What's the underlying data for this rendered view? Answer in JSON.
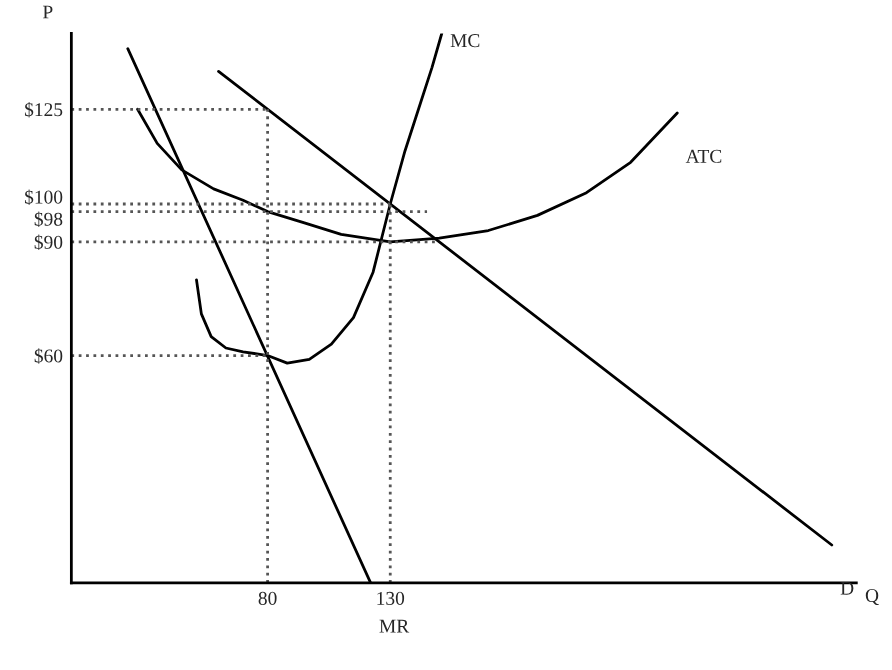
{
  "chart_data": {
    "type": "line",
    "xlabel": "Q",
    "ylabel": "P",
    "xlim": [
      0,
      320
    ],
    "ylim": [
      0,
      145
    ],
    "xticks": [
      80,
      130
    ],
    "yticks": [
      {
        "value": 60,
        "label": "$60"
      },
      {
        "value": 90,
        "label": "$90"
      },
      {
        "value": 98,
        "label": "$98"
      },
      {
        "value": 100,
        "label": "$100"
      },
      {
        "value": 125,
        "label": "$125"
      }
    ],
    "grid": false,
    "legend": false,
    "marker": "none",
    "series": [
      {
        "name": "D",
        "color": "#000000",
        "line_style": "solid",
        "x": [
          60,
          310
        ],
        "values": [
          135,
          10
        ]
      },
      {
        "name": "MR",
        "color": "#000000",
        "line_style": "solid",
        "x": [
          23,
          122
        ],
        "values": [
          141,
          0
        ]
      },
      {
        "name": "MC",
        "color": "#000000",
        "line_style": "solid",
        "x": [
          51,
          53,
          57,
          63,
          70,
          80,
          88,
          97,
          106,
          115,
          123,
          130,
          136,
          142,
          147,
          151
        ],
        "values": [
          80,
          71,
          65,
          62,
          61,
          60,
          58,
          59,
          63,
          70,
          82,
          100,
          114,
          126,
          136,
          145
        ]
      },
      {
        "name": "ATC",
        "color": "#000000",
        "line_style": "solid",
        "x": [
          27,
          35,
          45,
          58,
          70,
          80,
          95,
          110,
          130,
          150,
          170,
          190,
          210,
          228,
          247
        ],
        "values": [
          125,
          116,
          109,
          104,
          101,
          98,
          95,
          92,
          90,
          91,
          93,
          97,
          103,
          111,
          124
        ]
      },
      {
        "color": "#555555",
        "line_style": "dotted",
        "x": [
          0,
          80
        ],
        "values": [
          125,
          125
        ]
      },
      {
        "color": "#555555",
        "line_style": "dotted",
        "x": [
          80,
          80
        ],
        "values": [
          0,
          125
        ]
      },
      {
        "color": "#555555",
        "line_style": "dotted",
        "x": [
          0,
          130
        ],
        "values": [
          100,
          100
        ]
      },
      {
        "color": "#555555",
        "line_style": "dotted",
        "x": [
          130,
          130
        ],
        "values": [
          0,
          100
        ]
      },
      {
        "color": "#555555",
        "line_style": "dotted",
        "x": [
          0,
          145
        ],
        "values": [
          98,
          98
        ]
      },
      {
        "color": "#555555",
        "line_style": "dotted",
        "x": [
          0,
          150
        ],
        "values": [
          90,
          90
        ]
      },
      {
        "color": "#555555",
        "line_style": "dotted",
        "x": [
          0,
          80
        ],
        "values": [
          60,
          60
        ]
      }
    ]
  }
}
